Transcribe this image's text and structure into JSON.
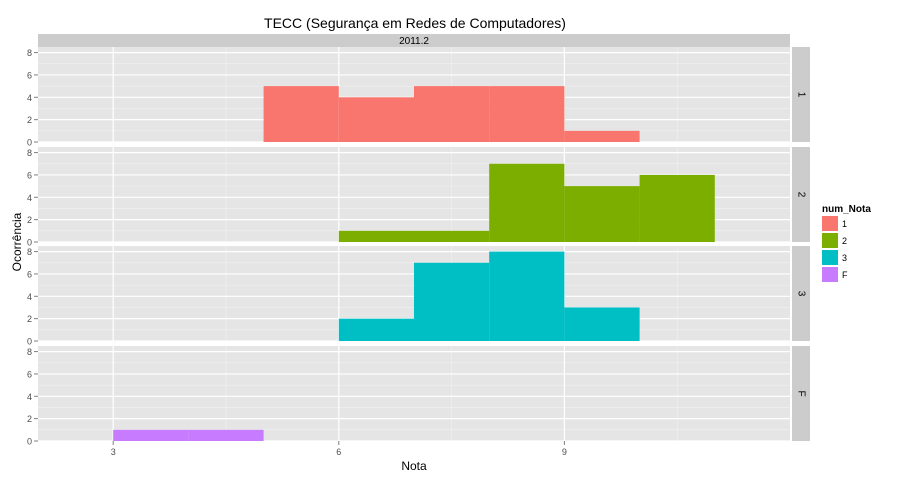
{
  "chart_data": {
    "type": "bar",
    "title": "TECC (Segurança em Redes de Computadores)",
    "xlabel": "Nota",
    "ylabel": "Ocorrência",
    "column_strip": "2011.2",
    "xlim": [
      2,
      12
    ],
    "ylim": [
      0,
      8.5
    ],
    "x_ticks": [
      3,
      6,
      9
    ],
    "y_ticks": [
      0,
      2,
      4,
      6,
      8
    ],
    "bin_width": 1,
    "grid": true,
    "legend_position": "right",
    "legend_title": "num_Nota",
    "series": [
      {
        "name": "1",
        "color": "#F8766D",
        "bins": [
          [
            5,
            5
          ],
          [
            6,
            4
          ],
          [
            7,
            5
          ],
          [
            8,
            5
          ],
          [
            9,
            1
          ]
        ]
      },
      {
        "name": "2",
        "color": "#7CAE00",
        "bins": [
          [
            6,
            1
          ],
          [
            7,
            1
          ],
          [
            8,
            7
          ],
          [
            9,
            5
          ],
          [
            10,
            6
          ]
        ]
      },
      {
        "name": "3",
        "color": "#00BFC4",
        "bins": [
          [
            6,
            2
          ],
          [
            7,
            7
          ],
          [
            8,
            8
          ],
          [
            9,
            3
          ]
        ]
      },
      {
        "name": "F",
        "color": "#C77CFF",
        "bins": [
          [
            3,
            1
          ],
          [
            4,
            1
          ]
        ]
      }
    ]
  }
}
